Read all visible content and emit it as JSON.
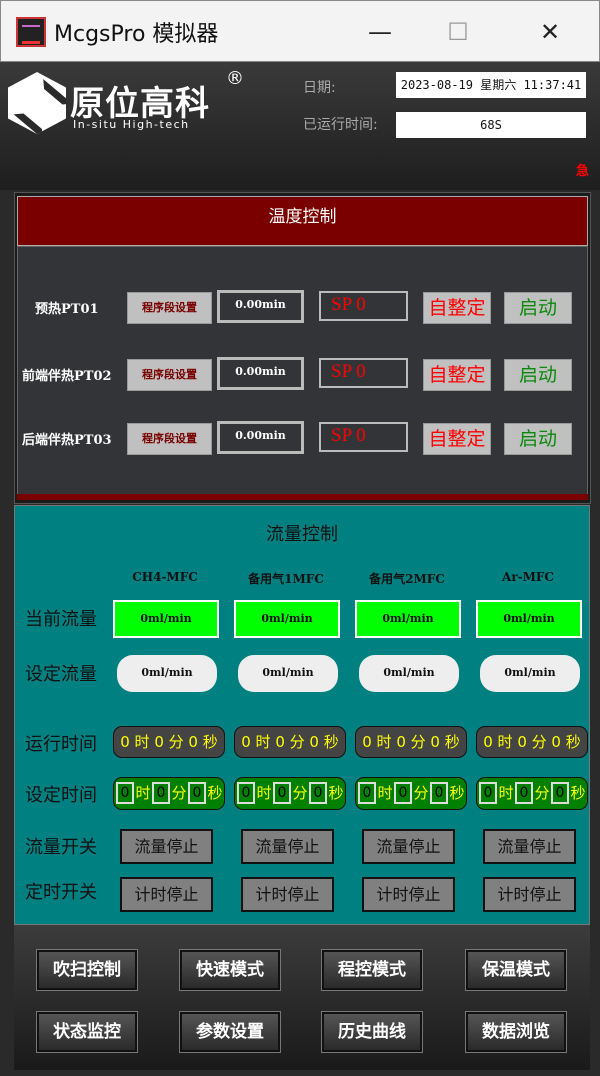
{
  "window": {
    "title": "McgsPro 模拟器",
    "minimize": "—",
    "maximize": "☐",
    "close": "✕"
  },
  "header": {
    "logo_cn": "原位高科",
    "logo_reg": "®",
    "logo_en": "In-situ High-tech",
    "date_label": "日期:",
    "date_value": "2023-08-19 星期六 11:37:41",
    "runtime_label": "已运行时间:",
    "runtime_value": "68S",
    "urgent": "急"
  },
  "temperature": {
    "title": "温度控制",
    "rows": [
      {
        "label": "预热PT01",
        "program_btn": "程序段设置",
        "minutes": "0.00min",
        "sp": "SP 0",
        "auto_btn": "自整定",
        "start_btn": "启动"
      },
      {
        "label": "前端伴热PT02",
        "program_btn": "程序段设置",
        "minutes": "0.00min",
        "sp": "SP 0",
        "auto_btn": "自整定",
        "start_btn": "启动"
      },
      {
        "label": "后端伴热PT03",
        "program_btn": "程序段设置",
        "minutes": "0.00min",
        "sp": "SP 0",
        "auto_btn": "自整定",
        "start_btn": "启动"
      }
    ]
  },
  "flow": {
    "title": "流量控制",
    "row_labels": {
      "current": "当前流量",
      "set": "设定流量",
      "run_time": "运行时间",
      "set_time": "设定时间",
      "flow_switch": "流量开关",
      "timer_switch": "定时开关"
    },
    "time_units": {
      "h": "时",
      "m": "分",
      "s": "秒"
    },
    "columns": [
      {
        "name": "CH4-MFC",
        "current": "0ml/min",
        "set": "0ml/min",
        "run": "0 时 0 分 0 秒",
        "set_h": "0",
        "set_m": "0",
        "set_s": "0",
        "flow_btn": "流量停止",
        "timer_btn": "计时停止"
      },
      {
        "name": "备用气1MFC",
        "current": "0ml/min",
        "set": "0ml/min",
        "run": "0 时 0 分 0 秒",
        "set_h": "0",
        "set_m": "0",
        "set_s": "0",
        "flow_btn": "流量停止",
        "timer_btn": "计时停止"
      },
      {
        "name": "备用气2MFC",
        "current": "0ml/min",
        "set": "0ml/min",
        "run": "0 时 0 分 0 秒",
        "set_h": "0",
        "set_m": "0",
        "set_s": "0",
        "flow_btn": "流量停止",
        "timer_btn": "计时停止"
      },
      {
        "name": "Ar-MFC",
        "current": "0ml/min",
        "set": "0ml/min",
        "run": "0 时 0 分 0 秒",
        "set_h": "0",
        "set_m": "0",
        "set_s": "0",
        "flow_btn": "流量停止",
        "timer_btn": "计时停止"
      }
    ]
  },
  "nav": [
    "吹扫控制",
    "快速模式",
    "程控模式",
    "保温模式",
    "状态监控",
    "参数设置",
    "历史曲线",
    "数据浏览"
  ],
  "colors": {
    "panel_red": "#7a0000",
    "teal": "#008080",
    "flow_green": "#00ff00",
    "alert": "#ff0000"
  }
}
